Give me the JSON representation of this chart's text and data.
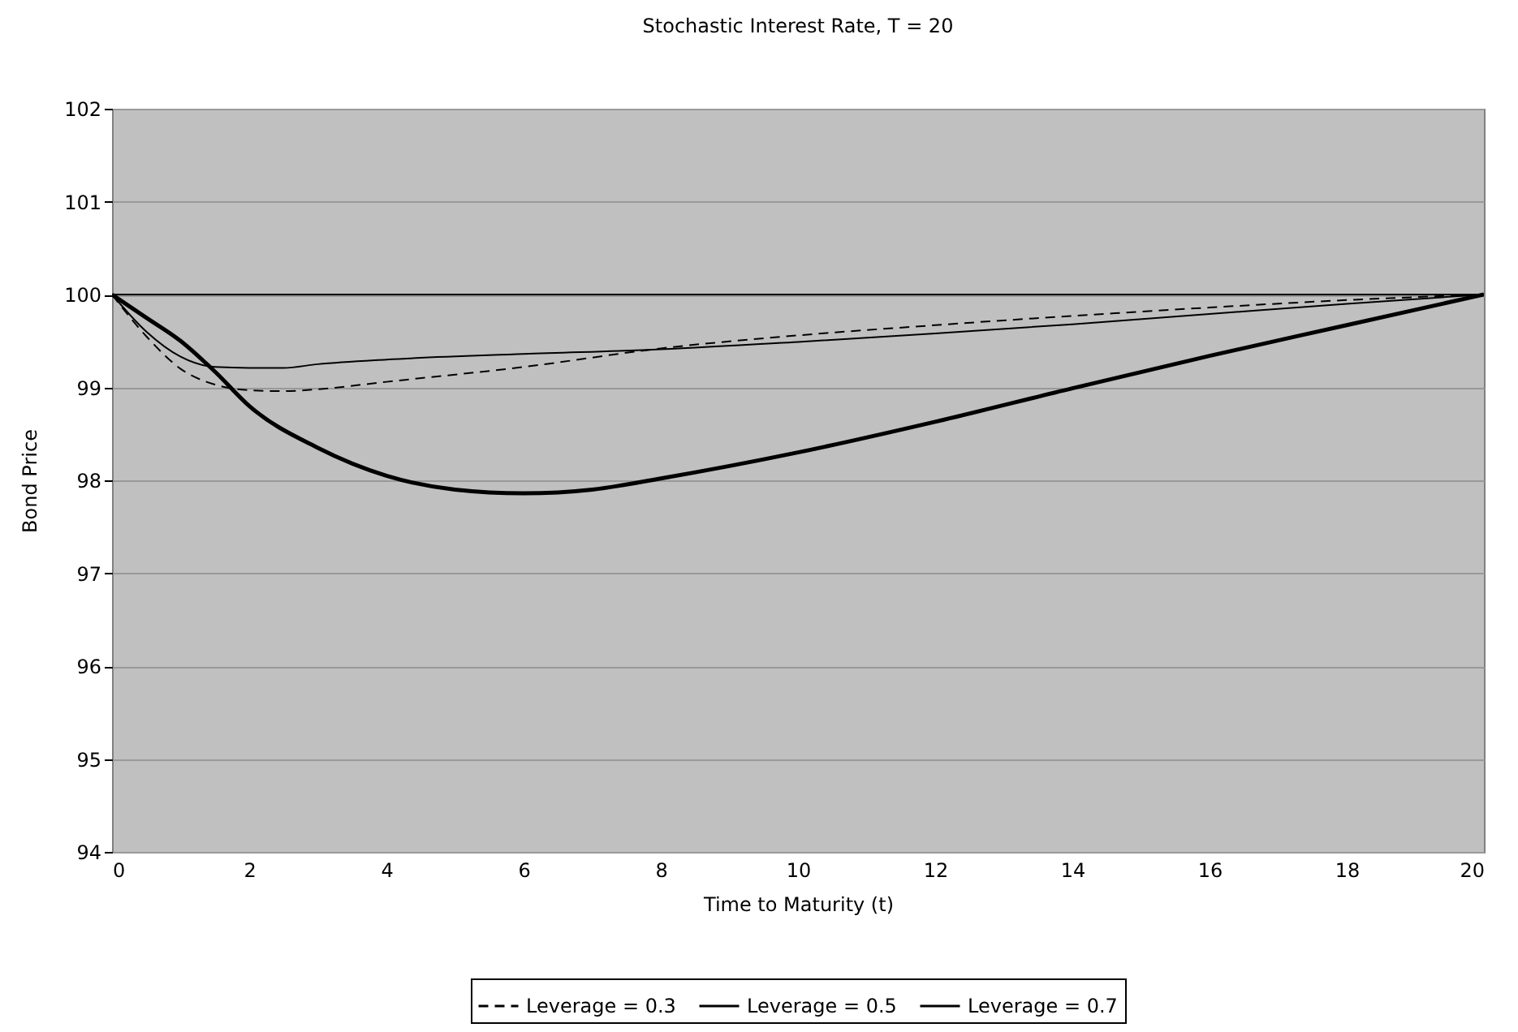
{
  "chart_data": {
    "type": "line",
    "title": "Stochastic Interest Rate, T = 20",
    "xlabel": "Time to Maturity (t)",
    "ylabel": "Bond Price",
    "xlim": [
      0,
      20
    ],
    "xticks": [
      0,
      2,
      4,
      6,
      8,
      10,
      12,
      14,
      16,
      18,
      20
    ],
    "ylim": [
      94,
      102
    ],
    "yticks": [
      94,
      95,
      96,
      97,
      98,
      99,
      100,
      101,
      102
    ],
    "grid": "y",
    "legend": "bottom",
    "ref_lines": [
      {
        "axis": "y",
        "value": 100,
        "color": "#000000"
      }
    ],
    "series": [
      {
        "name": "Leverage = 0.3",
        "color": "#000000",
        "line_style": "dashed",
        "x": [
          0,
          0.5,
          1,
          1.5,
          2,
          2.5,
          3,
          4,
          6,
          8,
          10,
          12,
          14,
          16,
          18,
          20
        ],
        "values": [
          100,
          99.55,
          99.2,
          99.03,
          98.97,
          98.96,
          98.98,
          99.06,
          99.22,
          99.42,
          99.56,
          99.67,
          99.77,
          99.86,
          99.94,
          100
        ]
      },
      {
        "name": "Leverage = 0.5",
        "color": "#000000",
        "line_style": "solid",
        "x": [
          0,
          0.5,
          1,
          1.5,
          2,
          2.5,
          3,
          4,
          6,
          8,
          10,
          12,
          14,
          16,
          18,
          20
        ],
        "values": [
          100,
          99.6,
          99.33,
          99.22,
          99.21,
          99.21,
          99.25,
          99.3,
          99.36,
          99.41,
          99.49,
          99.58,
          99.68,
          99.79,
          99.9,
          100
        ]
      },
      {
        "name": "Leverage = 0.7",
        "color": "#000000",
        "line_style": "solid",
        "x": [
          0,
          0.5,
          1,
          1.5,
          2,
          3,
          4,
          5,
          6,
          7,
          8,
          10,
          12,
          14,
          16,
          18,
          20
        ],
        "values": [
          100,
          99.75,
          99.5,
          99.17,
          98.8,
          98.35,
          98.05,
          97.9,
          97.86,
          97.9,
          98.02,
          98.3,
          98.63,
          98.99,
          99.34,
          99.67,
          100
        ]
      }
    ]
  }
}
